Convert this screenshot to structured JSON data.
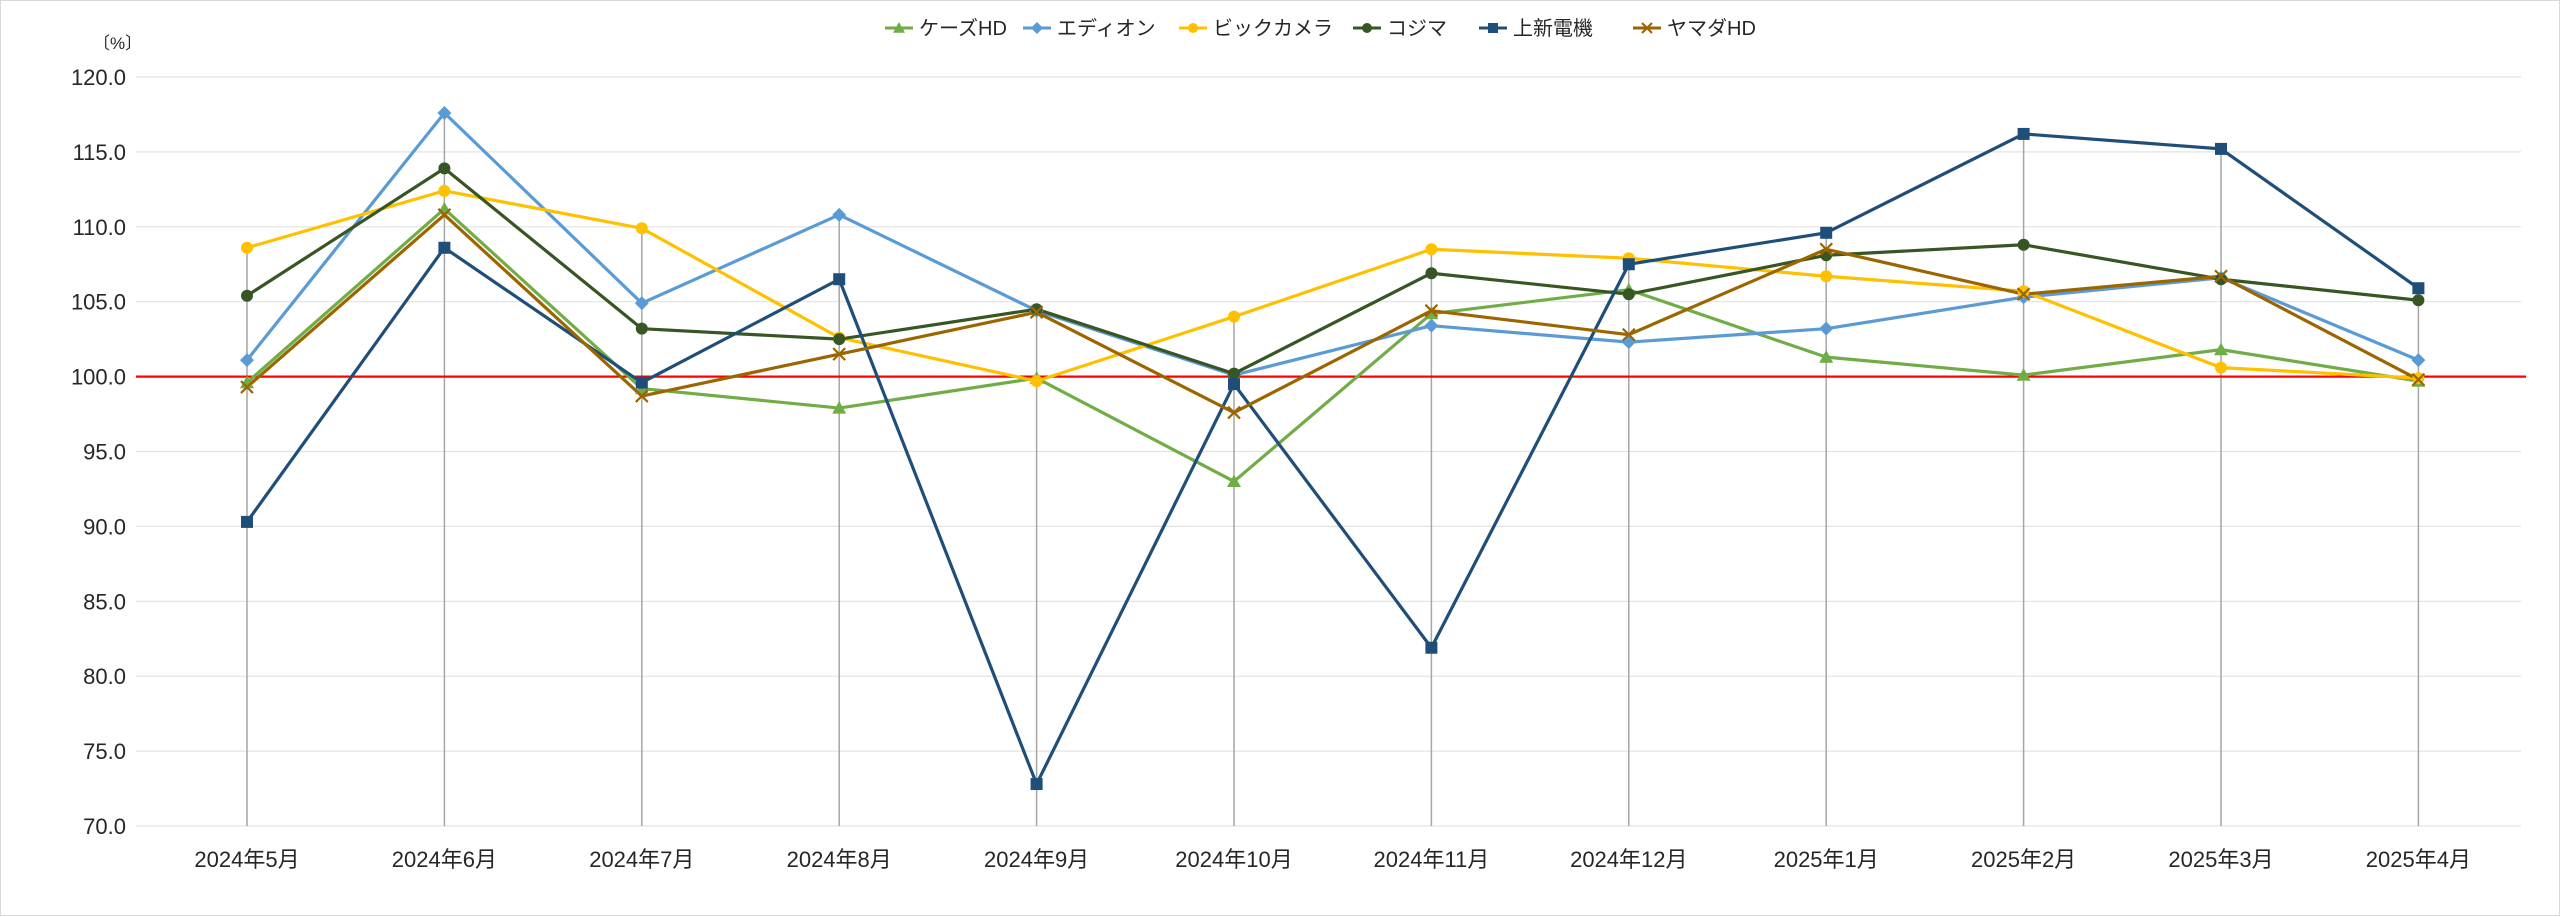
{
  "chart_data": {
    "type": "line",
    "title": "",
    "xlabel": "",
    "ylabel": "",
    "y_unit_label": "〔%〕",
    "ylim": [
      70,
      120
    ],
    "y_step": 5,
    "y_tick_decimals": 1,
    "grid": true,
    "legend_position": "top-center",
    "reference_line": {
      "y": 100,
      "color": "#ff0000"
    },
    "categories": [
      "2024年5月",
      "2024年6月",
      "2024年7月",
      "2024年8月",
      "2024年9月",
      "2024年10月",
      "2024年11月",
      "2024年12月",
      "2025年1月",
      "2025年2月",
      "2025年3月",
      "2025年4月"
    ],
    "series": [
      {
        "name": "ケーズHD",
        "color": "#70ad47",
        "marker": "triangle",
        "values": [
          99.6,
          111.2,
          99.2,
          97.9,
          99.9,
          93.0,
          104.2,
          105.8,
          101.3,
          100.1,
          101.8,
          99.7
        ]
      },
      {
        "name": "エディオン",
        "color": "#5b9bd5",
        "marker": "diamond",
        "values": [
          101.1,
          117.6,
          104.9,
          110.8,
          104.4,
          100.1,
          103.4,
          102.3,
          103.2,
          105.3,
          106.6,
          101.1
        ]
      },
      {
        "name": "ビックカメラ",
        "color": "#ffc000",
        "marker": "circle",
        "values": [
          108.6,
          112.4,
          109.9,
          102.6,
          99.7,
          104.0,
          108.5,
          107.9,
          106.7,
          105.7,
          100.6,
          99.9
        ]
      },
      {
        "name": "コジマ",
        "color": "#375623",
        "marker": "circle",
        "values": [
          105.4,
          113.9,
          103.2,
          102.5,
          104.5,
          100.2,
          106.9,
          105.5,
          108.1,
          108.8,
          106.5,
          105.1
        ]
      },
      {
        "name": "上新電機",
        "color": "#1f4e79",
        "marker": "square",
        "values": [
          90.3,
          108.6,
          99.6,
          106.5,
          72.8,
          99.5,
          81.9,
          107.5,
          109.6,
          116.2,
          115.2,
          105.9
        ]
      },
      {
        "name": "ヤマダHD",
        "color": "#9c6500",
        "marker": "x",
        "values": [
          99.3,
          110.8,
          98.7,
          101.5,
          104.3,
          97.6,
          104.4,
          102.8,
          108.5,
          105.5,
          106.7,
          99.8
        ]
      }
    ]
  }
}
